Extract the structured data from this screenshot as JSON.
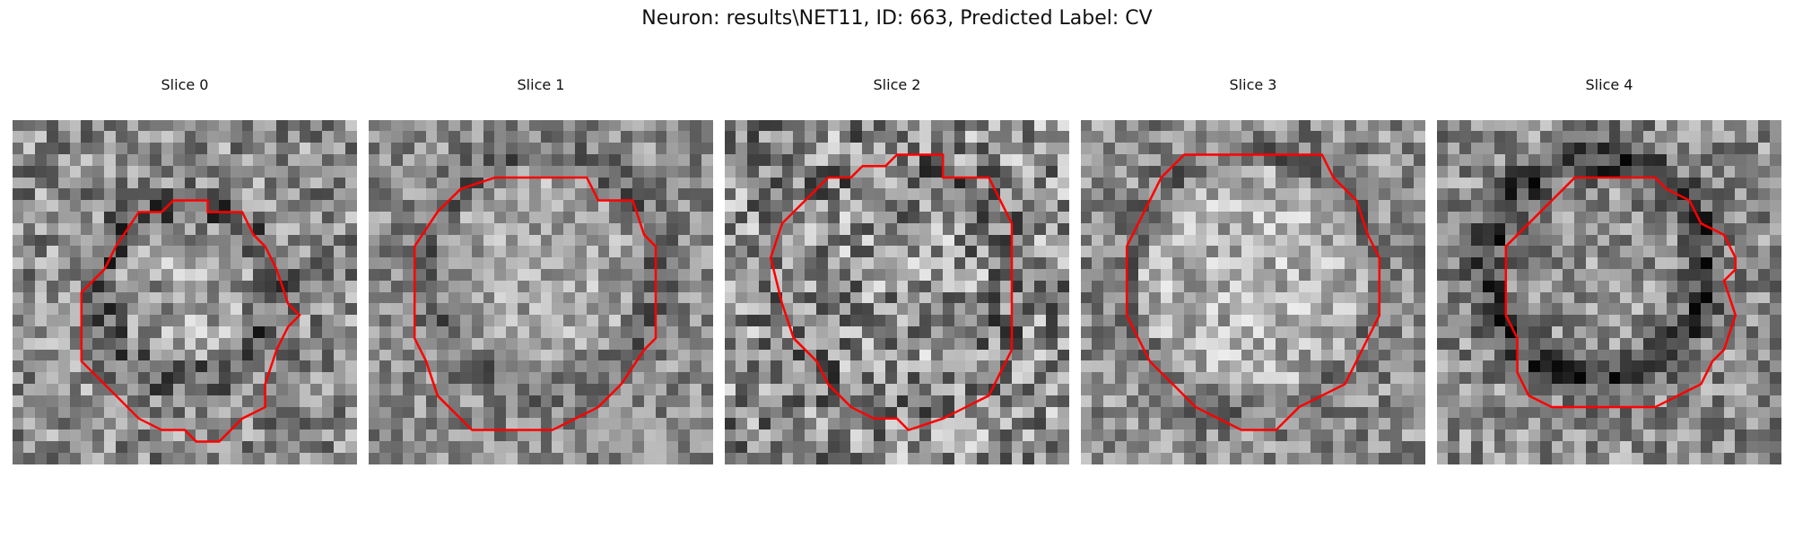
{
  "figure": {
    "title": "Neuron: results\\NET11, ID: 663, Predicted Label: CV",
    "contour_color": "#ff0000",
    "panels": [
      {
        "label": "Slice 0"
      },
      {
        "label": "Slice 1"
      },
      {
        "label": "Slice 2"
      },
      {
        "label": "Slice 3"
      },
      {
        "label": "Slice 4"
      }
    ]
  }
}
